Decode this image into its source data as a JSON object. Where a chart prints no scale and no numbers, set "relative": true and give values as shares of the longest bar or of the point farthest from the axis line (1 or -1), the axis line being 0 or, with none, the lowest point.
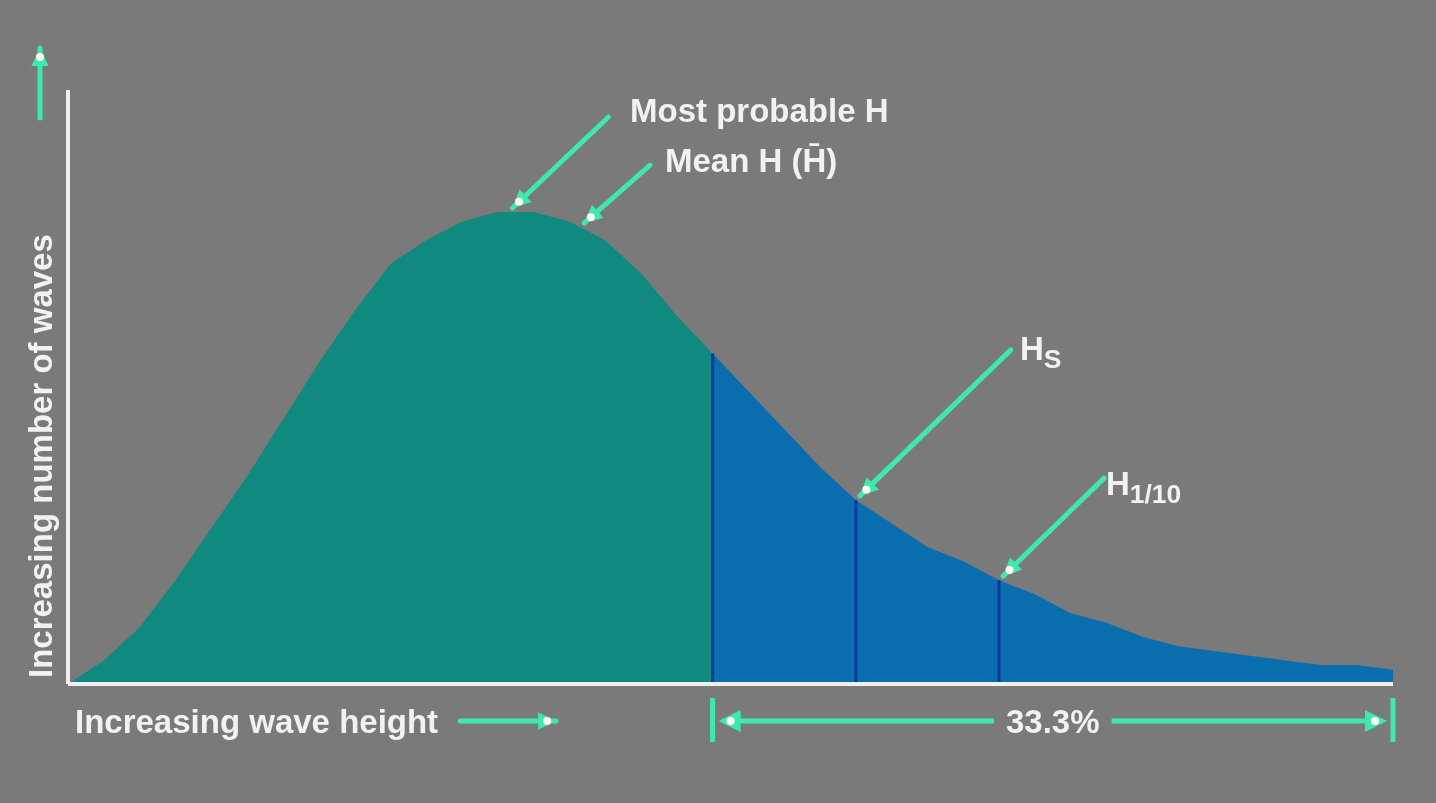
{
  "chart_data": {
    "type": "area",
    "relative": true,
    "xlabel": "Increasing wave height",
    "ylabel": "Increasing number of waves",
    "categories": [
      null,
      null,
      null,
      null,
      null,
      null,
      null,
      null,
      null,
      null,
      null,
      null,
      null,
      null,
      null,
      null,
      null,
      null,
      null,
      null,
      null,
      null,
      null,
      null,
      null,
      null,
      null,
      null,
      null,
      null,
      null,
      null,
      null,
      null,
      null,
      null,
      null,
      null
    ],
    "series": [
      {
        "color": "#108a7e",
        "values": [
          0,
          0.05,
          0.12,
          0.22,
          0.33,
          0.44,
          0.56,
          0.68,
          0.79,
          0.89,
          0.94,
          0.98,
          1,
          1,
          0.98,
          0.94,
          0.87,
          0.78,
          0.7,
          null,
          null,
          null,
          null,
          null,
          null,
          null,
          null,
          null,
          null,
          null,
          null,
          null,
          null,
          null,
          null,
          null,
          null,
          null
        ]
      },
      {
        "color": "#0a6eae",
        "values": [
          null,
          null,
          null,
          null,
          null,
          null,
          null,
          null,
          null,
          null,
          null,
          null,
          null,
          null,
          null,
          null,
          null,
          null,
          0.7,
          0.62,
          0.54,
          0.46,
          0.39,
          null,
          null,
          null,
          null,
          null,
          null,
          null,
          null,
          null,
          null,
          null,
          null,
          null,
          null,
          null
        ]
      },
      {
        "color": "#0a6eae",
        "values": [
          null,
          null,
          null,
          null,
          null,
          null,
          null,
          null,
          null,
          null,
          null,
          null,
          null,
          null,
          null,
          null,
          null,
          null,
          null,
          null,
          null,
          null,
          0.39,
          0.34,
          0.29,
          0.26,
          0.22,
          null,
          null,
          null,
          null,
          null,
          null,
          null,
          null,
          null,
          null,
          null
        ]
      },
      {
        "color": "#0a6eae",
        "values": [
          null,
          null,
          null,
          null,
          null,
          null,
          null,
          null,
          null,
          null,
          null,
          null,
          null,
          null,
          null,
          null,
          null,
          null,
          null,
          null,
          null,
          null,
          null,
          null,
          null,
          null,
          0.22,
          0.19,
          0.15,
          0.13,
          0.1,
          0.08,
          0.07,
          0.06,
          0.05,
          0.04,
          0.04,
          0.03
        ]
      }
    ],
    "annotations": [
      "Most probable H",
      "Mean H (H̄)",
      "H$_{S}$",
      "H$_{1/10}$",
      "33.3%"
    ],
    "legend": false,
    "grid": false
  }
}
